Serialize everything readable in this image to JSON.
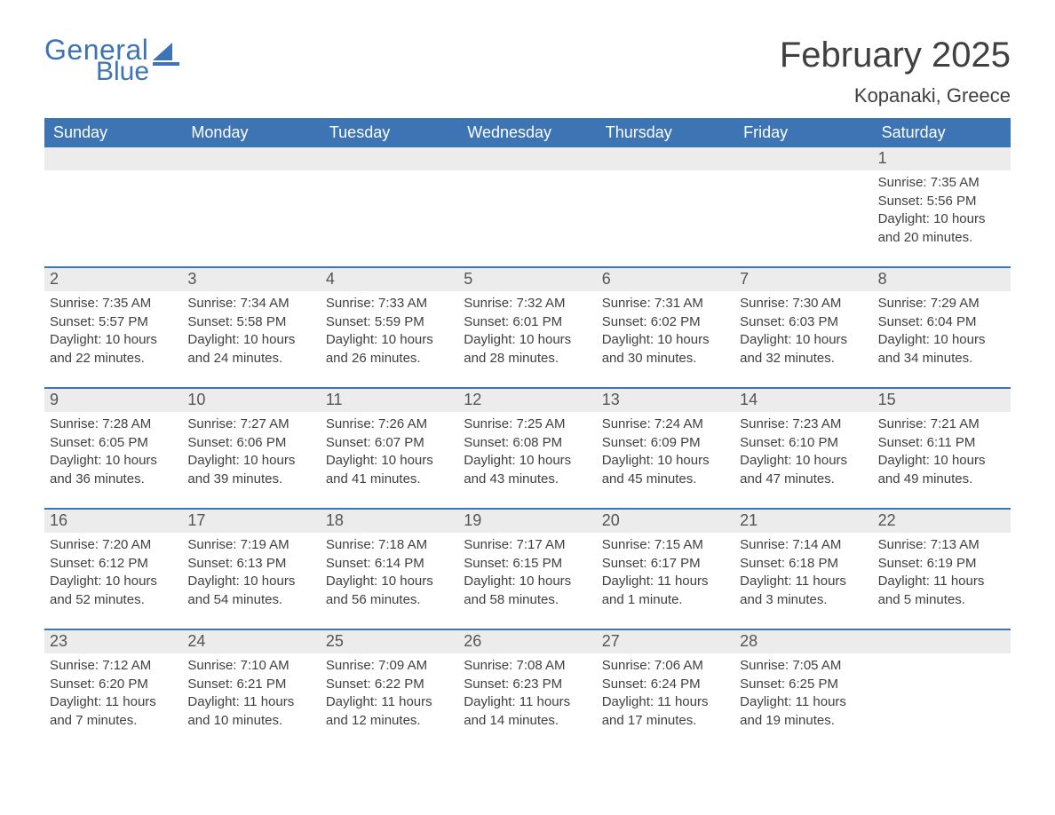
{
  "brand": {
    "word1": "General",
    "word2": "Blue",
    "color": "#3d74b3"
  },
  "header": {
    "month_title": "February 2025",
    "location": "Kopanaki, Greece"
  },
  "colors": {
    "header_bg": "#3d74b3",
    "header_text": "#ffffff",
    "datebar_bg": "#ececec",
    "datebar_text": "#555555",
    "body_text": "#404040",
    "page_bg": "#ffffff",
    "rule": "#3d74b3"
  },
  "typography": {
    "month_title_fontsize": 40,
    "location_fontsize": 22,
    "dayhead_fontsize": 18,
    "datebar_fontsize": 18,
    "cell_fontsize": 15
  },
  "dayheads": [
    "Sunday",
    "Monday",
    "Tuesday",
    "Wednesday",
    "Thursday",
    "Friday",
    "Saturday"
  ],
  "weeks": [
    [
      null,
      null,
      null,
      null,
      null,
      null,
      {
        "date": "1",
        "sunrise": "Sunrise: 7:35 AM",
        "sunset": "Sunset: 5:56 PM",
        "daylight1": "Daylight: 10 hours",
        "daylight2": "and 20 minutes."
      }
    ],
    [
      {
        "date": "2",
        "sunrise": "Sunrise: 7:35 AM",
        "sunset": "Sunset: 5:57 PM",
        "daylight1": "Daylight: 10 hours",
        "daylight2": "and 22 minutes."
      },
      {
        "date": "3",
        "sunrise": "Sunrise: 7:34 AM",
        "sunset": "Sunset: 5:58 PM",
        "daylight1": "Daylight: 10 hours",
        "daylight2": "and 24 minutes."
      },
      {
        "date": "4",
        "sunrise": "Sunrise: 7:33 AM",
        "sunset": "Sunset: 5:59 PM",
        "daylight1": "Daylight: 10 hours",
        "daylight2": "and 26 minutes."
      },
      {
        "date": "5",
        "sunrise": "Sunrise: 7:32 AM",
        "sunset": "Sunset: 6:01 PM",
        "daylight1": "Daylight: 10 hours",
        "daylight2": "and 28 minutes."
      },
      {
        "date": "6",
        "sunrise": "Sunrise: 7:31 AM",
        "sunset": "Sunset: 6:02 PM",
        "daylight1": "Daylight: 10 hours",
        "daylight2": "and 30 minutes."
      },
      {
        "date": "7",
        "sunrise": "Sunrise: 7:30 AM",
        "sunset": "Sunset: 6:03 PM",
        "daylight1": "Daylight: 10 hours",
        "daylight2": "and 32 minutes."
      },
      {
        "date": "8",
        "sunrise": "Sunrise: 7:29 AM",
        "sunset": "Sunset: 6:04 PM",
        "daylight1": "Daylight: 10 hours",
        "daylight2": "and 34 minutes."
      }
    ],
    [
      {
        "date": "9",
        "sunrise": "Sunrise: 7:28 AM",
        "sunset": "Sunset: 6:05 PM",
        "daylight1": "Daylight: 10 hours",
        "daylight2": "and 36 minutes."
      },
      {
        "date": "10",
        "sunrise": "Sunrise: 7:27 AM",
        "sunset": "Sunset: 6:06 PM",
        "daylight1": "Daylight: 10 hours",
        "daylight2": "and 39 minutes."
      },
      {
        "date": "11",
        "sunrise": "Sunrise: 7:26 AM",
        "sunset": "Sunset: 6:07 PM",
        "daylight1": "Daylight: 10 hours",
        "daylight2": "and 41 minutes."
      },
      {
        "date": "12",
        "sunrise": "Sunrise: 7:25 AM",
        "sunset": "Sunset: 6:08 PM",
        "daylight1": "Daylight: 10 hours",
        "daylight2": "and 43 minutes."
      },
      {
        "date": "13",
        "sunrise": "Sunrise: 7:24 AM",
        "sunset": "Sunset: 6:09 PM",
        "daylight1": "Daylight: 10 hours",
        "daylight2": "and 45 minutes."
      },
      {
        "date": "14",
        "sunrise": "Sunrise: 7:23 AM",
        "sunset": "Sunset: 6:10 PM",
        "daylight1": "Daylight: 10 hours",
        "daylight2": "and 47 minutes."
      },
      {
        "date": "15",
        "sunrise": "Sunrise: 7:21 AM",
        "sunset": "Sunset: 6:11 PM",
        "daylight1": "Daylight: 10 hours",
        "daylight2": "and 49 minutes."
      }
    ],
    [
      {
        "date": "16",
        "sunrise": "Sunrise: 7:20 AM",
        "sunset": "Sunset: 6:12 PM",
        "daylight1": "Daylight: 10 hours",
        "daylight2": "and 52 minutes."
      },
      {
        "date": "17",
        "sunrise": "Sunrise: 7:19 AM",
        "sunset": "Sunset: 6:13 PM",
        "daylight1": "Daylight: 10 hours",
        "daylight2": "and 54 minutes."
      },
      {
        "date": "18",
        "sunrise": "Sunrise: 7:18 AM",
        "sunset": "Sunset: 6:14 PM",
        "daylight1": "Daylight: 10 hours",
        "daylight2": "and 56 minutes."
      },
      {
        "date": "19",
        "sunrise": "Sunrise: 7:17 AM",
        "sunset": "Sunset: 6:15 PM",
        "daylight1": "Daylight: 10 hours",
        "daylight2": "and 58 minutes."
      },
      {
        "date": "20",
        "sunrise": "Sunrise: 7:15 AM",
        "sunset": "Sunset: 6:17 PM",
        "daylight1": "Daylight: 11 hours",
        "daylight2": "and 1 minute."
      },
      {
        "date": "21",
        "sunrise": "Sunrise: 7:14 AM",
        "sunset": "Sunset: 6:18 PM",
        "daylight1": "Daylight: 11 hours",
        "daylight2": "and 3 minutes."
      },
      {
        "date": "22",
        "sunrise": "Sunrise: 7:13 AM",
        "sunset": "Sunset: 6:19 PM",
        "daylight1": "Daylight: 11 hours",
        "daylight2": "and 5 minutes."
      }
    ],
    [
      {
        "date": "23",
        "sunrise": "Sunrise: 7:12 AM",
        "sunset": "Sunset: 6:20 PM",
        "daylight1": "Daylight: 11 hours",
        "daylight2": "and 7 minutes."
      },
      {
        "date": "24",
        "sunrise": "Sunrise: 7:10 AM",
        "sunset": "Sunset: 6:21 PM",
        "daylight1": "Daylight: 11 hours",
        "daylight2": "and 10 minutes."
      },
      {
        "date": "25",
        "sunrise": "Sunrise: 7:09 AM",
        "sunset": "Sunset: 6:22 PM",
        "daylight1": "Daylight: 11 hours",
        "daylight2": "and 12 minutes."
      },
      {
        "date": "26",
        "sunrise": "Sunrise: 7:08 AM",
        "sunset": "Sunset: 6:23 PM",
        "daylight1": "Daylight: 11 hours",
        "daylight2": "and 14 minutes."
      },
      {
        "date": "27",
        "sunrise": "Sunrise: 7:06 AM",
        "sunset": "Sunset: 6:24 PM",
        "daylight1": "Daylight: 11 hours",
        "daylight2": "and 17 minutes."
      },
      {
        "date": "28",
        "sunrise": "Sunrise: 7:05 AM",
        "sunset": "Sunset: 6:25 PM",
        "daylight1": "Daylight: 11 hours",
        "daylight2": "and 19 minutes."
      },
      null
    ]
  ]
}
